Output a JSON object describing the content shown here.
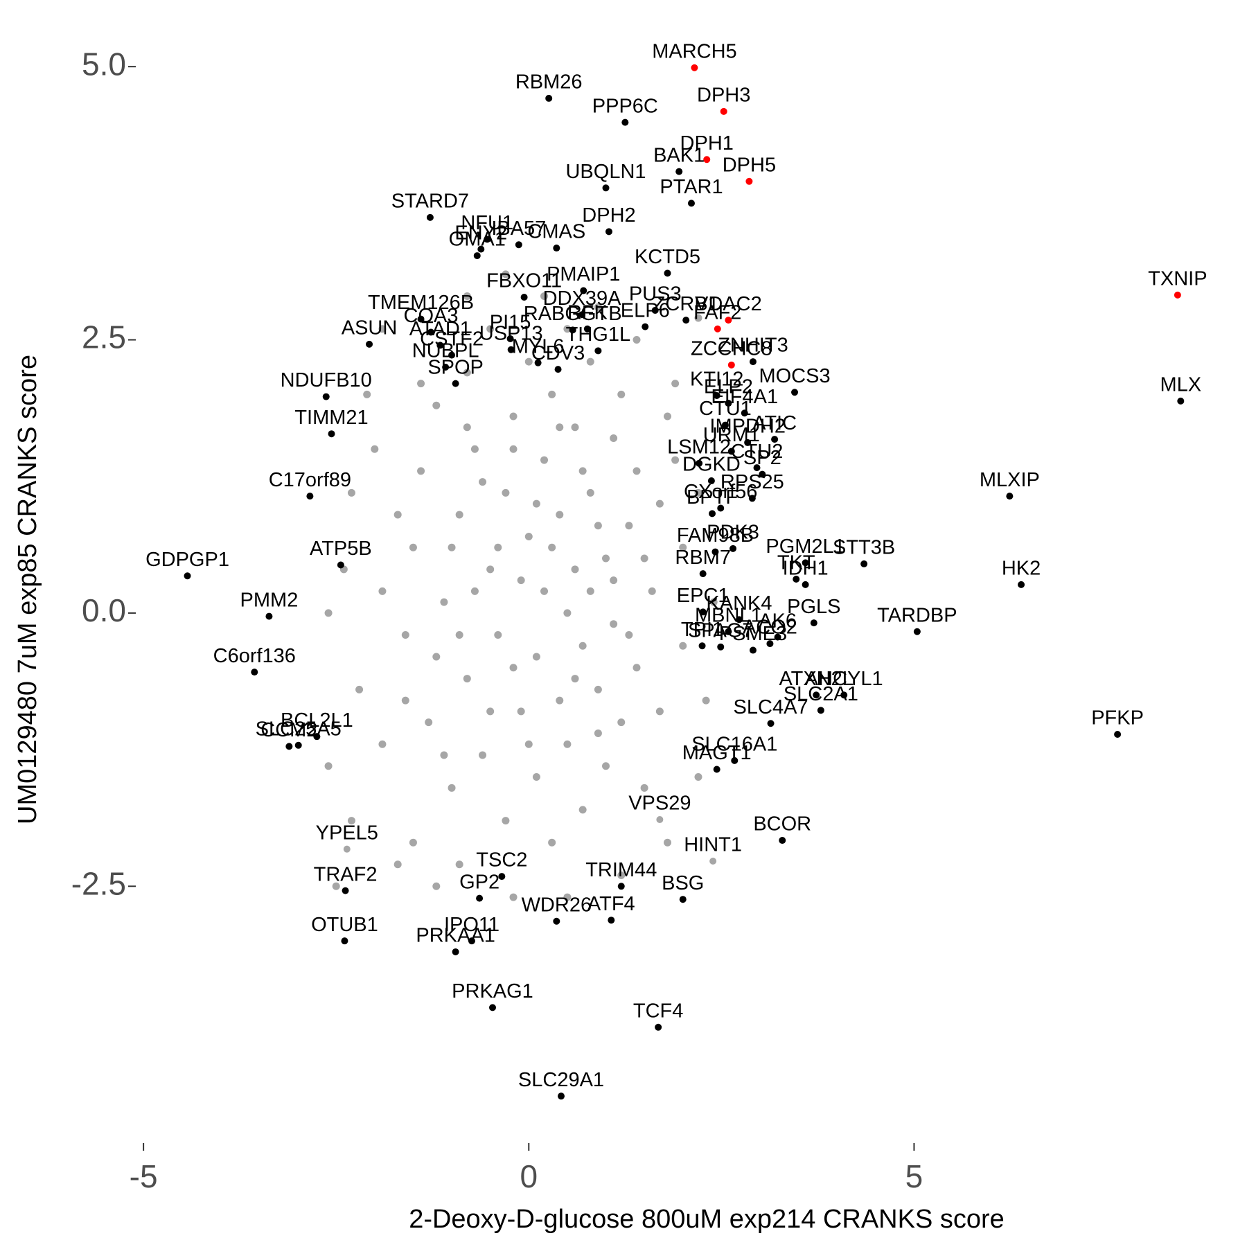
{
  "chart_data": {
    "type": "scatter",
    "xlabel": "2-Deoxy-D-glucose 800uM exp214 CRANKS score",
    "ylabel": "UM0129480 7uM exp85 CRANKS score",
    "xlim": [
      -5.1,
      8.7
    ],
    "ylim": [
      -4.85,
      5.28
    ],
    "xticks": [
      -5,
      0,
      5
    ],
    "yticks": [
      -2.5,
      {
        "value": 0,
        "label": "0.0"
      },
      2.5,
      {
        "value": 5,
        "label": "5.0"
      }
    ],
    "series": [
      {
        "color": "#a6a6a6",
        "x": [
          -1.6,
          -1.5,
          -1.4,
          -1.3,
          -1.2,
          -1.1,
          -1.0,
          -0.9,
          -0.8,
          -0.8,
          -0.7,
          -0.6,
          -0.5,
          -0.5,
          -0.4,
          -0.3,
          -0.3,
          -0.2,
          -0.1,
          0.0,
          0.0,
          0.1,
          0.1,
          0.2,
          0.2,
          0.3,
          0.3,
          0.4,
          0.4,
          0.5,
          0.5,
          0.6,
          0.6,
          0.7,
          0.7,
          0.8,
          0.8,
          0.9,
          1.0,
          1.0,
          1.1,
          1.1,
          1.2,
          1.2,
          1.3,
          1.4,
          1.4,
          1.5,
          1.6,
          1.7,
          1.7,
          1.8,
          -1.7,
          -1.6,
          -1.4,
          -1.2,
          -1.0,
          -0.9,
          -0.7,
          -0.6,
          -0.4,
          -0.2,
          -0.1,
          0.1,
          0.3,
          0.5,
          0.6,
          0.8,
          0.9,
          1.1,
          1.3,
          1.5,
          -0.2,
          0.4,
          0.7,
          -0.8,
          -1.1,
          0.0,
          0.9,
          -0.5,
          -1.9,
          -2.0,
          -1.9,
          2.0,
          2.0,
          1.9,
          -2.3,
          -2.2,
          -2.4,
          -2.1,
          -2.3,
          -1.7,
          -1.2,
          -0.8,
          -0.3,
          0.2,
          0.9,
          1.4,
          1.9,
          2.2,
          2.3,
          2.2,
          1.8,
          1.2,
          0.5,
          -0.2,
          -0.9,
          -2.6,
          -2.6,
          2.4,
          -1.5,
          -2.5,
          2.2,
          -1.9
        ],
        "y": [
          -0.2,
          0.6,
          1.3,
          -1.0,
          1.9,
          0.1,
          -1.6,
          0.9,
          2.2,
          -0.6,
          1.5,
          -1.3,
          0.4,
          2.6,
          -0.2,
          1.1,
          -1.9,
          1.8,
          -0.9,
          0.7,
          2.3,
          -0.4,
          -1.5,
          1.4,
          0.2,
          -2.1,
          2.0,
          -0.8,
          0.9,
          2.6,
          -1.2,
          0.4,
          1.7,
          -0.3,
          -1.8,
          1.1,
          2.3,
          -0.7,
          0.5,
          -1.4,
          1.6,
          -0.1,
          2.0,
          -1.0,
          0.8,
          -0.5,
          1.3,
          -1.6,
          0.2,
          1.0,
          -0.9,
          1.8,
          0.9,
          -0.8,
          2.1,
          -0.4,
          0.6,
          -0.2,
          0.2,
          1.2,
          0.6,
          -0.5,
          0.3,
          1.0,
          0.6,
          0.0,
          -0.6,
          0.2,
          0.8,
          0.3,
          -0.2,
          0.5,
          1.5,
          1.7,
          1.3,
          1.7,
          -1.3,
          -1.2,
          -1.1,
          -0.9,
          0.2,
          1.5,
          -1.2,
          0.6,
          -0.3,
          1.4,
          1.1,
          -0.7,
          0.4,
          2.0,
          -1.9,
          -2.3,
          -2.5,
          2.9,
          3.1,
          2.9,
          2.8,
          2.5,
          2.1,
          1.1,
          -0.8,
          -1.5,
          -2.1,
          -2.4,
          -2.6,
          -2.6,
          -2.3,
          0.0,
          -1.4,
          0.1,
          -2.1,
          -2.5,
          2.7,
          2.6
        ]
      },
      {
        "color": "#a6a6a6",
        "labels": [
          "HINT1",
          "YPEL5",
          "VPS29"
        ],
        "x": [
          2.39,
          -2.36,
          1.7
        ],
        "y": [
          -2.27,
          -2.16,
          -1.89
        ]
      },
      {
        "color": "#000000",
        "labels": [
          "RBM26",
          "PPP6C",
          "BAK1",
          "PTAR1",
          "UBQLN1",
          "DPH2",
          "CMAS",
          "NFU1",
          "IBA57",
          "STARD7",
          "ENY2",
          "OMA1",
          "KCTD5",
          "PMAIP1",
          "FBXO11",
          "PUS3",
          "ZCRB1",
          "DDX39A",
          "RFK",
          "ELP6",
          "RABGGTB",
          "THG1L",
          "ZNHIT3",
          "KTI12",
          "MOCS3",
          "PI15",
          "MYL6",
          "USP13",
          "CDV3",
          "SPOP",
          "ELP2",
          "CTU1",
          "EIF4A1",
          "ATIC",
          "IMPDH2",
          "SP2",
          "LSM12",
          "CTU2",
          "MLXIP",
          "MLX",
          "URM1",
          "DGKD",
          "RPS25",
          "GDPGP1",
          "ATP5B",
          "PMM2",
          "C6orf136",
          "C17orf89",
          "TIMM21",
          "NDUFB10",
          "ASUN",
          "TMEM126B",
          "COA3",
          "ATAD1",
          "NUBPL",
          "CSTF2",
          "CXorf56",
          "BPTF",
          "PDK3",
          "PGM2L1",
          "TKT",
          "STT3B",
          "IDH1",
          "HK2",
          "RBM7",
          "FAM98B",
          "EPC1",
          "KANK4",
          "MBNL1",
          "PGLS",
          "TARDBP",
          "TPI1",
          "SPAG7",
          "AK6",
          "ACO2",
          "PSME3",
          "AHCYL1",
          "ATXN2L",
          "SLC2A1",
          "PFKP",
          "MAGT1",
          "SLC4A7",
          "SLC16A1",
          "BCOR",
          "BSG",
          "TRIM44",
          "ATF4",
          "TSC2",
          "GP2",
          "IPO11",
          "WDR26",
          "PRKAA1",
          "TRAF2",
          "OTUB1",
          "CCM2",
          "SLC25A5",
          "BCL2L1",
          "PRKAG1",
          "TCF4",
          "SLC29A1"
        ],
        "x": [
          0.26,
          1.25,
          1.95,
          2.11,
          1.0,
          1.04,
          0.36,
          -0.54,
          -0.13,
          -1.28,
          -0.62,
          -0.67,
          1.8,
          0.71,
          -0.06,
          1.64,
          2.04,
          0.69,
          0.76,
          1.51,
          0.57,
          0.9,
          2.91,
          2.44,
          3.45,
          -0.24,
          0.12,
          -0.23,
          0.38,
          -0.95,
          2.59,
          2.55,
          2.8,
          3.19,
          2.84,
          3.03,
          2.21,
          2.96,
          6.24,
          8.46,
          2.63,
          2.37,
          2.9,
          -4.43,
          -2.44,
          -3.37,
          -3.56,
          -2.84,
          -2.56,
          -2.63,
          -2.07,
          -1.4,
          -1.27,
          -1.15,
          -1.08,
          -1.0,
          2.49,
          2.38,
          2.65,
          3.59,
          3.47,
          4.35,
          3.59,
          6.39,
          2.26,
          2.42,
          2.26,
          2.73,
          2.59,
          3.7,
          5.04,
          2.25,
          2.49,
          3.23,
          3.13,
          2.91,
          4.09,
          3.73,
          3.79,
          7.64,
          2.44,
          3.14,
          2.67,
          3.29,
          2.0,
          1.2,
          1.07,
          -0.35,
          -0.64,
          -0.74,
          0.36,
          -0.95,
          -2.38,
          -2.39,
          -3.11,
          -2.99,
          -2.75,
          -0.47,
          1.68,
          0.42
        ],
        "y": [
          4.71,
          4.49,
          4.04,
          3.75,
          3.89,
          3.49,
          3.34,
          3.42,
          3.37,
          3.62,
          3.33,
          3.27,
          3.11,
          2.95,
          2.89,
          2.77,
          2.68,
          2.73,
          2.6,
          2.62,
          2.59,
          2.4,
          2.3,
          1.99,
          2.02,
          2.51,
          2.29,
          2.41,
          2.23,
          2.1,
          1.92,
          1.72,
          1.83,
          1.59,
          1.56,
          1.27,
          1.37,
          1.33,
          1.07,
          1.94,
          1.48,
          1.21,
          1.05,
          0.34,
          0.44,
          -0.03,
          -0.54,
          1.07,
          1.64,
          1.98,
          2.46,
          2.69,
          2.57,
          2.45,
          2.25,
          2.36,
          0.96,
          0.91,
          0.59,
          0.46,
          0.31,
          0.45,
          0.26,
          0.26,
          0.36,
          0.56,
          0.01,
          -0.06,
          -0.17,
          -0.09,
          -0.17,
          -0.3,
          -0.31,
          -0.22,
          -0.28,
          -0.34,
          -0.75,
          -0.75,
          -0.89,
          -1.11,
          -1.43,
          -1.01,
          -1.35,
          -2.08,
          -2.62,
          -2.5,
          -2.81,
          -2.41,
          -2.61,
          -3.0,
          -2.82,
          -3.1,
          -2.54,
          -3.0,
          -1.22,
          -1.21,
          -1.13,
          -3.61,
          -3.79,
          -4.42
        ]
      },
      {
        "color": "#ff0000",
        "labels": [
          "MARCH5",
          "DPH3",
          "DPH1",
          "DPH5",
          "TXNIP",
          "VDAC2",
          "FAF2",
          "ZCCHC8"
        ],
        "x": [
          2.15,
          2.53,
          2.31,
          2.86,
          8.42,
          2.59,
          2.45,
          2.63
        ],
        "y": [
          4.99,
          4.59,
          4.15,
          3.95,
          2.91,
          2.68,
          2.6,
          2.27
        ]
      }
    ]
  }
}
